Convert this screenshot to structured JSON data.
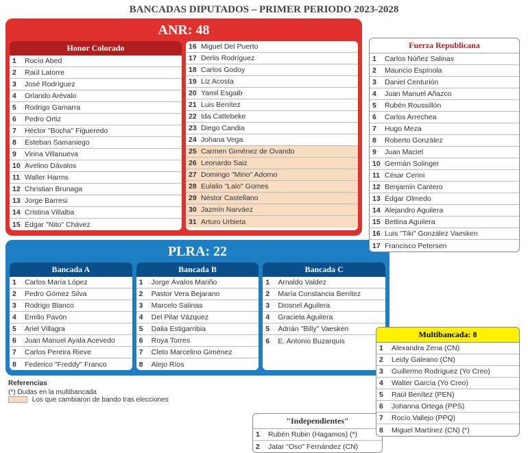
{
  "page_title": "BANCADAS DIPUTADOS – PRIMER PERIODO 2023-2028",
  "anr": {
    "header": "ANR: 48",
    "honor_colorado": {
      "title": "Honor Colorado",
      "col1": [
        {
          "n": "1",
          "name": "Rocío Abed"
        },
        {
          "n": "2",
          "name": "Raúl Latorre"
        },
        {
          "n": "3",
          "name": "José Rodríguez"
        },
        {
          "n": "4",
          "name": "Orlando Arévalo"
        },
        {
          "n": "5",
          "name": "Rodrigo Gamarra"
        },
        {
          "n": "6",
          "name": "Pedro Ortiz"
        },
        {
          "n": "7",
          "name": "Héctor \"Bocha\" Figueredo"
        },
        {
          "n": "8",
          "name": "Esteban Samaniego"
        },
        {
          "n": "9",
          "name": "Virina Villanueva"
        },
        {
          "n": "10",
          "name": "Avelino Dávalos"
        },
        {
          "n": "11",
          "name": "Walter Harms"
        },
        {
          "n": "12",
          "name": "Christian Brunaga"
        },
        {
          "n": "13",
          "name": "Jorge Barresi"
        },
        {
          "n": "14",
          "name": "Cristina Villalba"
        },
        {
          "n": "15",
          "name": "Édgar \"Nito\" Chávez"
        }
      ],
      "col2": [
        {
          "n": "16",
          "name": "Miguel Del Puerto"
        },
        {
          "n": "17",
          "name": "Derlis Rodríguez"
        },
        {
          "n": "18",
          "name": "Carlos Godoy"
        },
        {
          "n": "19",
          "name": "Liz Acosta"
        },
        {
          "n": "20",
          "name": "Yamil Esgaib"
        },
        {
          "n": "21",
          "name": "Luis Benítez"
        },
        {
          "n": "22",
          "name": "Ida Cattebeke"
        },
        {
          "n": "23",
          "name": "Diego Candia"
        },
        {
          "n": "24",
          "name": "Johana Vega"
        },
        {
          "n": "25",
          "name": "Carmen Giménez de Ovando",
          "hl": true
        },
        {
          "n": "26",
          "name": "Leonardo Saiz",
          "hl": true
        },
        {
          "n": "27",
          "name": "Domingo \"Mino\" Adorno",
          "hl": true
        },
        {
          "n": "28",
          "name": "Eulalio \"Lalo\" Gomes",
          "hl": true
        },
        {
          "n": "29",
          "name": "Néstor Castellano",
          "hl": true
        },
        {
          "n": "30",
          "name": "Jazmín Narváez",
          "hl": true
        },
        {
          "n": "31",
          "name": "Arturo Urbieta",
          "hl": true
        }
      ]
    }
  },
  "fr": {
    "title": "Fuerza Republicana",
    "members": [
      {
        "n": "1",
        "name": "Carlos Núñez Salinas"
      },
      {
        "n": "2",
        "name": "Mauricio Espínola"
      },
      {
        "n": "3",
        "name": "Daniel Centurión"
      },
      {
        "n": "4",
        "name": "Juan Manuel Añazco"
      },
      {
        "n": "5",
        "name": "Rubén Roussillón"
      },
      {
        "n": "6",
        "name": "Carlos Arrechea"
      },
      {
        "n": "7",
        "name": "Hugo Meza"
      },
      {
        "n": "8",
        "name": "Roberto González"
      },
      {
        "n": "9",
        "name": "Juan Maciel"
      },
      {
        "n": "10",
        "name": "Germán Solinger"
      },
      {
        "n": "11",
        "name": "César Cerini"
      },
      {
        "n": "12",
        "name": "Benjamín Cantero"
      },
      {
        "n": "13",
        "name": "Édgar Olmedo"
      },
      {
        "n": "14",
        "name": "Alejandro Aguilera"
      },
      {
        "n": "15",
        "name": "Bettina Aguilera"
      },
      {
        "n": "16",
        "name": "Luis \"Tiki\" González Vaesken"
      },
      {
        "n": "17",
        "name": "Francisco Petersen"
      }
    ]
  },
  "plra": {
    "header": "PLRA: 22",
    "bancada_a": {
      "title": "Bancada A",
      "members": [
        {
          "n": "1",
          "name": "Carlos María López"
        },
        {
          "n": "2",
          "name": "Pedro Gómez Silva"
        },
        {
          "n": "3",
          "name": "Rodrigo Blanco"
        },
        {
          "n": "4",
          "name": "Emilio Pavón"
        },
        {
          "n": "5",
          "name": "Ariel Villagra"
        },
        {
          "n": "6",
          "name": "Juan Manuel Ayala Acevedo"
        },
        {
          "n": "7",
          "name": "Carlos Pereira Rieve"
        },
        {
          "n": "8",
          "name": "Federico \"Freddy\" Franco"
        }
      ]
    },
    "bancada_b": {
      "title": "Bancada B",
      "members": [
        {
          "n": "1",
          "name": "Jorge Ávalos Mariño"
        },
        {
          "n": "2",
          "name": "Pastor Vera Bejarano"
        },
        {
          "n": "3",
          "name": "Marcelo Salinas"
        },
        {
          "n": "4",
          "name": "Del Pilar Vázquez"
        },
        {
          "n": "5",
          "name": "Dalia Estigarribia"
        },
        {
          "n": "6",
          "name": "Roya Torres"
        },
        {
          "n": "7",
          "name": "Cleto Marcelino Giménez"
        },
        {
          "n": "8",
          "name": "Alejo Ríos"
        }
      ]
    },
    "bancada_c": {
      "title": "Bancada C",
      "members": [
        {
          "n": "1",
          "name": "Arnaldo Valdez"
        },
        {
          "n": "2",
          "name": "María Constancia Benítez"
        },
        {
          "n": "3",
          "name": "Diosnel Aguilera"
        },
        {
          "n": "4",
          "name": "Graciela Aguilera"
        },
        {
          "n": "5",
          "name": "Adrián \"Billy\" Vaesken"
        },
        {
          "n": "6",
          "name": "E. Antonio Buzarquis"
        }
      ]
    }
  },
  "multi": {
    "title": "Multibancada: 8",
    "members": [
      {
        "n": "1",
        "name": "Alexandra Zena (CN)"
      },
      {
        "n": "2",
        "name": "Leidy Galeano (CN)"
      },
      {
        "n": "3",
        "name": "Guillermo Rodríguez (Yo Creo)"
      },
      {
        "n": "4",
        "name": "Walter García (Yo Creo)"
      },
      {
        "n": "5",
        "name": "Raúl Benítez (PEN)"
      },
      {
        "n": "6",
        "name": "Johanna Ortega (PPS)"
      },
      {
        "n": "7",
        "name": "Rocío Vallejo (PPQ)"
      },
      {
        "n": "8",
        "name": "Miguel Martínez (CN) (*)"
      }
    ]
  },
  "indep": {
    "title": "\"Independientes\"",
    "members": [
      {
        "n": "1",
        "name": "Rubén Rubin (Hagamos) (*)"
      },
      {
        "n": "2",
        "name": "Jatar \"Oso\" Fernández (CN)"
      }
    ]
  },
  "refs": {
    "title": "Referencias",
    "note1": "(*) Dudas en la multibancada",
    "note2": "Los que cambiaron de bando tras elecciones"
  },
  "colors": {
    "anr_bg": "#e0312d",
    "anr_sub_bg": "#b01e1e",
    "plra_bg": "#1c7fc4",
    "plra_sub_bg": "#0a4f8a",
    "highlight": "#f8dcc2",
    "yellow": "#fff200"
  }
}
